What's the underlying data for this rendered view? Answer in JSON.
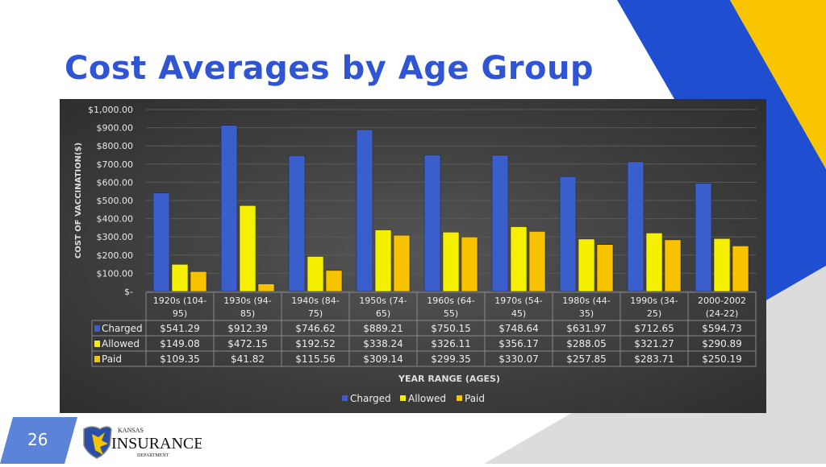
{
  "slide": {
    "title": "Cost Averages by Age Group",
    "page_number": "26",
    "logo_text": {
      "line1": "Kansas",
      "line2": "Insurance",
      "line3": "Department"
    }
  },
  "colors": {
    "charged": "#3a5fcd",
    "allowed": "#f5f000",
    "paid": "#f7c200",
    "title": "#2f55d4",
    "blue_stripe": "#1f4fd0",
    "yellow_stripe": "#f8c500"
  },
  "chart_data": {
    "type": "bar",
    "title": "",
    "xlabel": "YEAR RANGE (AGES)",
    "ylabel": "COST OF VACCINATION($)",
    "ylim": [
      0,
      1000
    ],
    "yticks": [
      "$-",
      "$100.00",
      "$200.00",
      "$300.00",
      "$400.00",
      "$500.00",
      "$600.00",
      "$700.00",
      "$800.00",
      "$900.00",
      "$1,000.00"
    ],
    "grid": true,
    "legend": "bottom",
    "categories": [
      [
        "1920s (104-",
        "95)"
      ],
      [
        "1930s (94-",
        "85)"
      ],
      [
        "1940s (84-",
        "75)"
      ],
      [
        "1950s (74-",
        "65)"
      ],
      [
        "1960s (64-",
        "55)"
      ],
      [
        "1970s (54-",
        "45)"
      ],
      [
        "1980s (44-",
        "35)"
      ],
      [
        "1990s (34-",
        "25)"
      ],
      [
        "2000-2002",
        "(24-22)"
      ]
    ],
    "series": [
      {
        "name": "Charged",
        "values": [
          541.29,
          912.39,
          746.62,
          889.21,
          750.15,
          748.64,
          631.97,
          712.65,
          594.73
        ],
        "labels": [
          "$541.29",
          "$912.39",
          "$746.62",
          "$889.21",
          "$750.15",
          "$748.64",
          "$631.97",
          "$712.65",
          "$594.73"
        ]
      },
      {
        "name": "Allowed",
        "values": [
          149.08,
          472.15,
          192.52,
          338.24,
          326.11,
          356.17,
          288.05,
          321.27,
          290.89
        ],
        "labels": [
          "$149.08",
          "$472.15",
          "$192.52",
          "$338.24",
          "$326.11",
          "$356.17",
          "$288.05",
          "$321.27",
          "$290.89"
        ]
      },
      {
        "name": "Paid",
        "values": [
          109.35,
          41.82,
          115.56,
          309.14,
          299.35,
          330.07,
          257.85,
          283.71,
          250.19
        ],
        "labels": [
          "$109.35",
          "$41.82",
          "$115.56",
          "$309.14",
          "$299.35",
          "$330.07",
          "$257.85",
          "$283.71",
          "$250.19"
        ]
      }
    ]
  }
}
